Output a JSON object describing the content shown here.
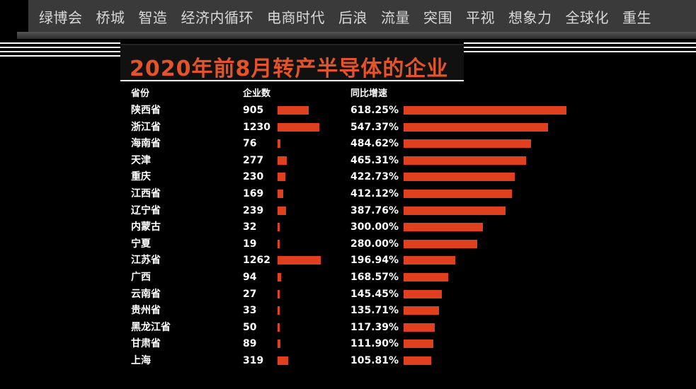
{
  "top_tags": [
    "绿博会",
    "桥城",
    "智造",
    "经济内循环",
    "电商时代",
    "后浪",
    "流量",
    "突围",
    "平视",
    "想象力",
    "全球化",
    "重生"
  ],
  "colors": {
    "accent": "#e5532a",
    "bar": "#e0401e",
    "background": "#000000",
    "topbar": "#3a3a3a"
  },
  "chart_data": {
    "type": "bar",
    "title": "2020年前8月转产半导体的企业",
    "columns": {
      "province": "省份",
      "companies": "企业数",
      "growth": "同比增速"
    },
    "categories": [
      "陕西省",
      "浙江省",
      "海南省",
      "天津",
      "重庆",
      "江西省",
      "辽宁省",
      "内蒙古",
      "宁夏",
      "江苏省",
      "广西",
      "云南省",
      "贵州省",
      "黑龙江省",
      "甘肃省",
      "上海"
    ],
    "series": [
      {
        "name": "企业数",
        "values": [
          905,
          1230,
          76,
          277,
          230,
          169,
          239,
          32,
          19,
          1262,
          94,
          27,
          33,
          50,
          89,
          319
        ],
        "labels": [
          "905",
          "1230",
          "76",
          "277",
          "230",
          "169",
          "239",
          "32",
          "19",
          "1262",
          "94",
          "27",
          "33",
          "50",
          "89",
          "319"
        ]
      },
      {
        "name": "同比增速",
        "values": [
          618.25,
          547.37,
          484.62,
          465.31,
          422.73,
          412.12,
          387.76,
          300.0,
          280.0,
          196.94,
          168.57,
          145.45,
          135.71,
          117.39,
          111.9,
          105.81
        ],
        "labels": [
          "618.25%",
          "547.37%",
          "484.62%",
          "465.31%",
          "422.73%",
          "412.12%",
          "387.76%",
          "300.00%",
          "280.00%",
          "196.94%",
          "168.57%",
          "145.45%",
          "135.71%",
          "117.39%",
          "111.90%",
          "105.81%"
        ]
      }
    ]
  }
}
